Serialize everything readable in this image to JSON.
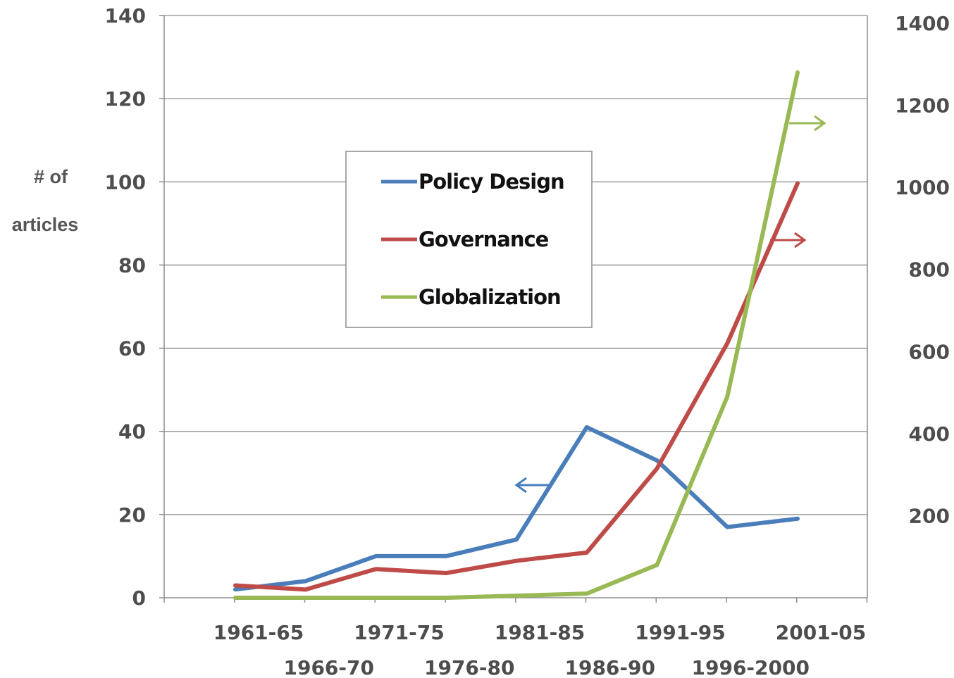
{
  "chart_data": {
    "type": "line",
    "title": "",
    "xlabel": "",
    "ylabel": [
      "# of",
      "articles"
    ],
    "categories": [
      "1961-65",
      "1966-70",
      "1971-75",
      "1976-80",
      "1981-85",
      "1986-90",
      "1991-95",
      "1996-2000",
      "2001-05"
    ],
    "ylim": [
      0,
      140
    ],
    "yticks": [
      0,
      20,
      40,
      60,
      80,
      100,
      120,
      140
    ],
    "y2lim": [
      0,
      1400
    ],
    "y2ticks_labels": [
      "200",
      "400",
      "600",
      "800",
      "1000",
      "1200",
      "1400"
    ],
    "grid": true,
    "legend_position": "upper-center",
    "series": [
      {
        "name": "Policy Design",
        "axis": "left",
        "color": "#4a7ebb",
        "values": [
          2,
          4,
          10,
          10,
          14,
          41,
          33,
          17,
          19
        ]
      },
      {
        "name": "Governance",
        "axis": "right",
        "color": "#be4b48",
        "values": [
          30,
          20,
          70,
          60,
          90,
          110,
          315,
          620,
          1010
        ]
      },
      {
        "name": "Globalization",
        "axis": "right",
        "color": "#98b954",
        "values": [
          0,
          0,
          0,
          0,
          5,
          10,
          80,
          490,
          1280
        ]
      }
    ],
    "arrows": [
      {
        "series": "Policy Design",
        "direction": "left"
      },
      {
        "series": "Governance",
        "direction": "right"
      },
      {
        "series": "Globalization",
        "direction": "right"
      }
    ]
  }
}
